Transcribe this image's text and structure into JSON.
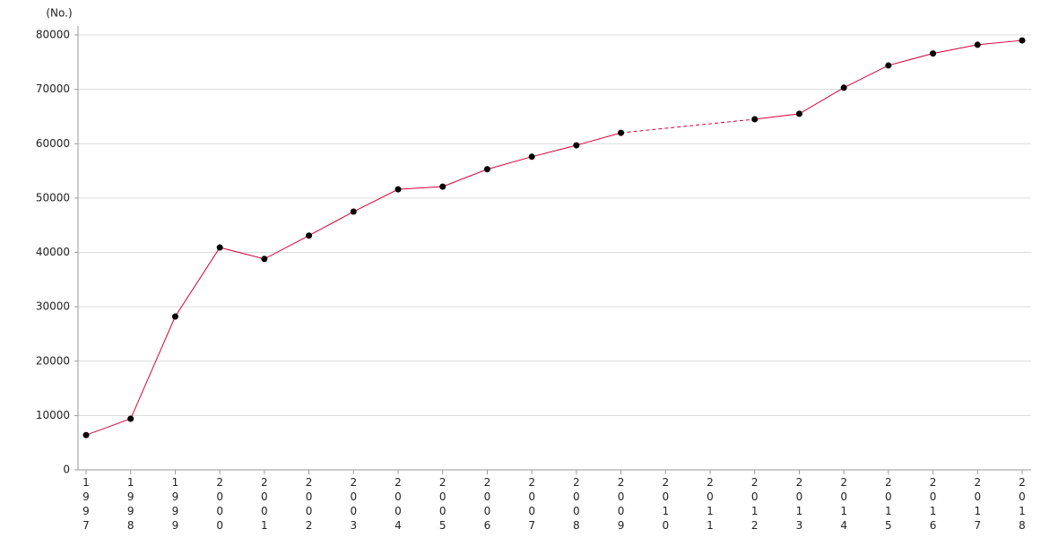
{
  "chart_data": {
    "type": "line",
    "y_unit": "(No.)",
    "categories": [
      "1997",
      "1998",
      "1999",
      "2000",
      "2001",
      "2002",
      "2003",
      "2004",
      "2005",
      "2006",
      "2007",
      "2008",
      "2009",
      "2010",
      "2011",
      "2012",
      "2013",
      "2014",
      "2015",
      "2016",
      "2017",
      "2018"
    ],
    "series": [
      {
        "color": "#d6003c",
        "values": [
          6400,
          9400,
          28200,
          40900,
          38800,
          43100,
          47500,
          51600,
          52100,
          55300,
          57600,
          59700,
          62000,
          null,
          null,
          64500,
          65500,
          70300,
          74400,
          76600,
          78200,
          79000
        ]
      }
    ],
    "ylim": [
      0,
      80000
    ],
    "yticks": [
      0,
      10000,
      20000,
      30000,
      40000,
      50000,
      60000,
      70000,
      80000
    ],
    "grid": true
  }
}
